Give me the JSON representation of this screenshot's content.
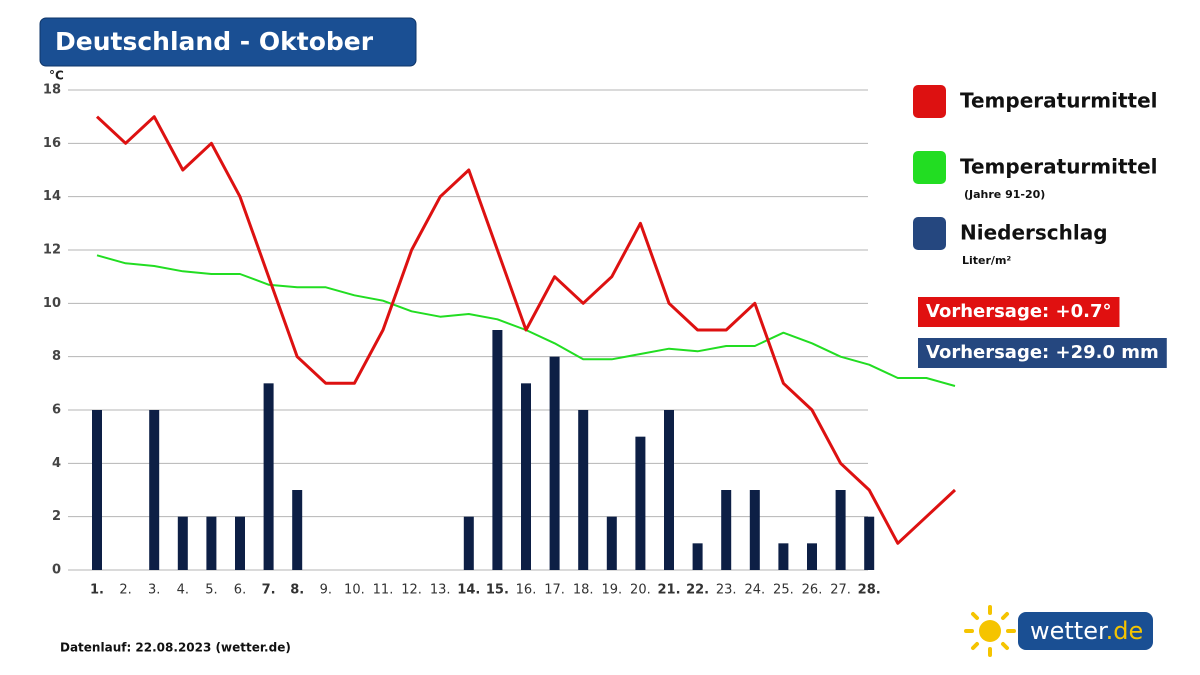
{
  "chart_data": {
    "type": "combo",
    "title": "Deutschland - Oktober",
    "y_unit": "°C",
    "categories": [
      "1.",
      "2.",
      "3.",
      "4.",
      "5.",
      "6.",
      "7.",
      "8.",
      "9.",
      "10.",
      "11.",
      "12.",
      "13.",
      "14.",
      "15.",
      "16.",
      "17.",
      "18.",
      "19.",
      "20.",
      "21.",
      "22.",
      "23.",
      "24.",
      "25.",
      "26.",
      "27.",
      "28.",
      null,
      null,
      null
    ],
    "highlight_indices": [
      0,
      6,
      7,
      13,
      14,
      20,
      21,
      27
    ],
    "highlight_color": "#b00000",
    "ylim": [
      0,
      18
    ],
    "yticks": [
      0,
      2,
      4,
      6,
      8,
      10,
      12,
      14,
      16,
      18
    ],
    "grid": true,
    "series": [
      {
        "name": "Temperaturmittel",
        "type": "line",
        "color": "#dd1111",
        "values": [
          17,
          16,
          17,
          15,
          16,
          14,
          11,
          8,
          7,
          7,
          9,
          12,
          14,
          15,
          12,
          9,
          11,
          10,
          11,
          13,
          10,
          9,
          9,
          10,
          7,
          6,
          4,
          3,
          1,
          2,
          3
        ]
      },
      {
        "name": "Temperaturmittel",
        "note": "(Jahre 91-20)",
        "type": "line",
        "color": "#22dd22",
        "values": [
          11.8,
          11.5,
          11.4,
          11.2,
          11.1,
          11.1,
          10.7,
          10.6,
          10.6,
          10.3,
          10.1,
          9.7,
          9.5,
          9.6,
          9.4,
          9.0,
          8.5,
          7.9,
          7.9,
          8.1,
          8.3,
          8.2,
          8.4,
          8.4,
          8.9,
          8.5,
          8.0,
          7.7,
          7.2,
          7.2,
          6.9
        ]
      },
      {
        "name": "Niederschlag",
        "note": "Liter/m²",
        "type": "bar",
        "color": "#0d1f45",
        "legend_color": "#25477f",
        "values": [
          6,
          0,
          6,
          2,
          2,
          2,
          7,
          3,
          0,
          0,
          0,
          0,
          0,
          2,
          9,
          7,
          8,
          6,
          2,
          5,
          6,
          1,
          3,
          3,
          1,
          1,
          3,
          2,
          null,
          null,
          null
        ]
      }
    ],
    "annotations": [
      {
        "text": "Vorhersage: +0.7°",
        "color": "#e01010"
      },
      {
        "text": "Vorhersage: +29.0 mm",
        "color": "#25477f"
      }
    ],
    "footer": "Datenlauf: 22.08.2023 (wetter.de)",
    "logo": {
      "text": "wetter",
      "suffix": ".de"
    }
  }
}
